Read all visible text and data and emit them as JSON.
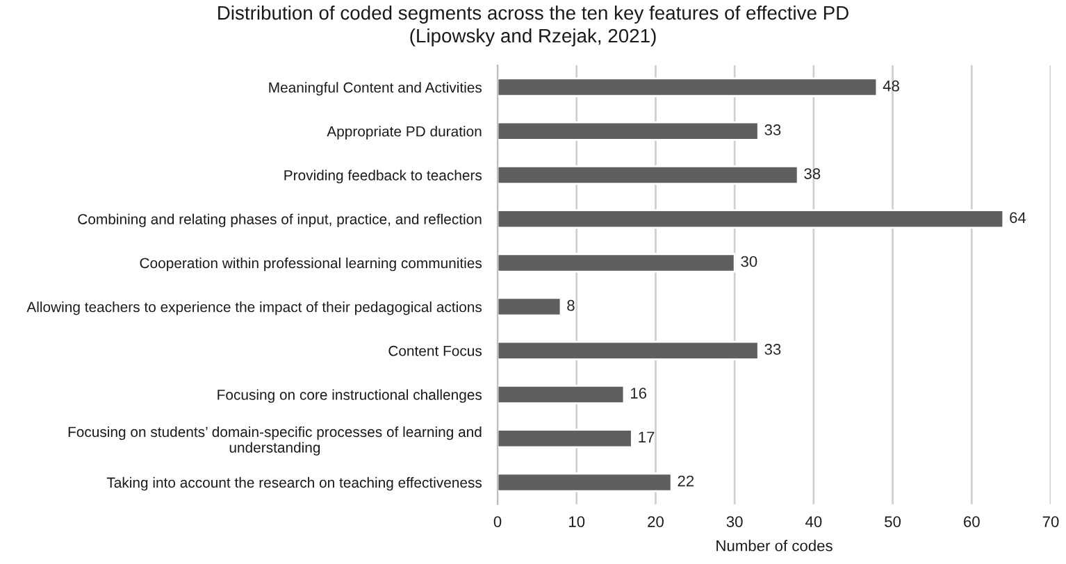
{
  "chart_data": {
    "type": "bar",
    "orientation": "horizontal",
    "title": "Distribution of coded segments across the ten key features of effective PD\n(Lipowsky and Rzejak, 2021)",
    "xlabel": "Number of codes",
    "categories": [
      "Meaningful Content and Activities",
      "Appropriate PD duration",
      "Providing feedback to teachers",
      "Combining and relating phases of input, practice, and reflection",
      "Cooperation within professional learning communities",
      "Allowing teachers to experience the impact of their pedagogical actions",
      "Content Focus",
      "Focusing on core instructional challenges",
      "Focusing on students’ domain-specific processes of learning and\nunderstanding",
      "Taking into account the research on teaching effectiveness"
    ],
    "values": [
      48,
      33,
      38,
      64,
      30,
      8,
      33,
      16,
      17,
      22
    ],
    "color": "#5f5f5f",
    "xlim": [
      0,
      70
    ],
    "xticks": [
      0,
      10,
      20,
      30,
      40,
      50,
      60,
      70
    ],
    "grid": "x",
    "data_labels": true,
    "legend": false
  }
}
